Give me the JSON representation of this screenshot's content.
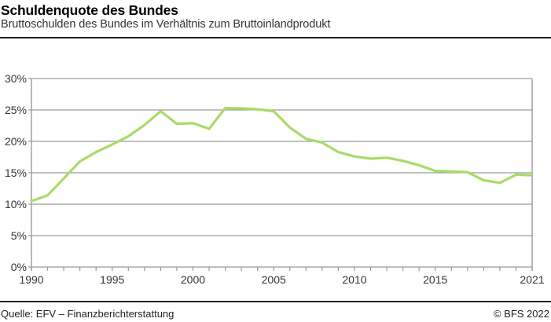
{
  "header": {
    "title": "Schuldenquote des Bundes",
    "subtitle": "Bruttoschulden des Bundes im Verhältnis zum Bruttoinlandprodukt"
  },
  "footer": {
    "source": "Quelle: EFV – Finanzberichterstattung",
    "copyright": "© BFS 2022"
  },
  "colors": {
    "line": "#a8db6a",
    "grid": "#9a9a9a",
    "axis": "#9a9a9a",
    "rule": "#222222"
  },
  "chart_data": {
    "type": "line",
    "title": "Schuldenquote des Bundes",
    "subtitle": "Bruttoschulden des Bundes im Verhältnis zum Bruttoinlandprodukt",
    "xlabel": "",
    "ylabel": "",
    "x": [
      1990,
      1991,
      1992,
      1993,
      1994,
      1995,
      1996,
      1997,
      1998,
      1999,
      2000,
      2001,
      2002,
      2003,
      2004,
      2005,
      2006,
      2007,
      2008,
      2009,
      2010,
      2011,
      2012,
      2013,
      2014,
      2015,
      2016,
      2017,
      2018,
      2019,
      2020,
      2021
    ],
    "series": [
      {
        "name": "Schuldenquote",
        "values": [
          10.5,
          11.4,
          14.1,
          16.8,
          18.3,
          19.5,
          20.8,
          22.6,
          24.8,
          22.8,
          22.9,
          22.0,
          25.3,
          25.25,
          25.1,
          24.8,
          22.2,
          20.4,
          19.8,
          18.3,
          17.6,
          17.25,
          17.4,
          16.9,
          16.2,
          15.3,
          15.2,
          15.1,
          13.8,
          13.4,
          14.7,
          14.6
        ]
      }
    ],
    "xticks": [
      "1990",
      "1995",
      "2000",
      "2005",
      "2010",
      "2015",
      "2021"
    ],
    "yticks": [
      "0%",
      "5%",
      "10%",
      "15%",
      "20%",
      "25%",
      "30%"
    ],
    "xlim": [
      1990,
      2021
    ],
    "ylim": [
      0,
      30
    ],
    "grid": true,
    "legend": "none",
    "source": "Quelle: EFV – Finanzberichterstattung",
    "copyright": "© BFS 2022"
  }
}
